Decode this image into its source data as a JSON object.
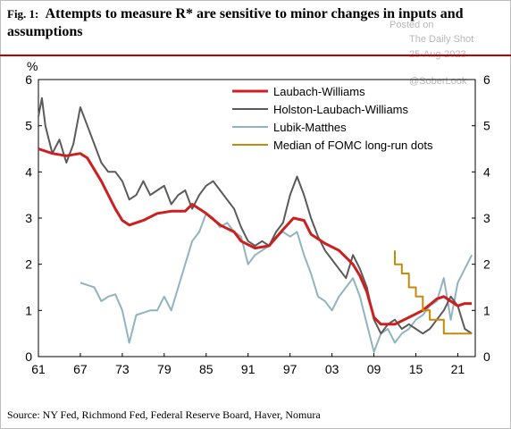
{
  "header": {
    "fig_label": "Fig. 1:",
    "title": "Attempts to measure R* are sensitive to minor changes in inputs and assumptions"
  },
  "watermark": {
    "posted": "Posted on",
    "site": "The Daily Shot",
    "date": "25-Aug-2023",
    "handle": "@SoberLook"
  },
  "footer": {
    "source": "Source: NY Fed, Richmond Fed, Federal Reserve Board, Haver, Nomura"
  },
  "chart_data": {
    "type": "line",
    "ylabel": "%",
    "xlim": [
      1961,
      2023.5
    ],
    "ylim": [
      0,
      6
    ],
    "x_ticks": [
      "61",
      "67",
      "73",
      "79",
      "85",
      "91",
      "97",
      "03",
      "09",
      "15",
      "21"
    ],
    "y_ticks": [
      "0",
      "1",
      "2",
      "3",
      "4",
      "5",
      "6"
    ],
    "legend_position": "top-right",
    "grid": false,
    "series": [
      {
        "name": "Laubach-Williams",
        "color": "#cc1f1f",
        "x": [
          1961,
          1963,
          1965,
          1967,
          1968,
          1970,
          1972,
          1973,
          1974,
          1976,
          1978,
          1980,
          1982,
          1983,
          1985,
          1987,
          1989,
          1990,
          1992,
          1994,
          1996,
          1997.5,
          1999,
          2000,
          2002,
          2004,
          2006,
          2007,
          2008,
          2009,
          2010,
          2012,
          2014,
          2016,
          2018,
          2019,
          2020,
          2021,
          2022,
          2023
        ],
        "y": [
          4.5,
          4.4,
          4.35,
          4.4,
          4.3,
          3.8,
          3.2,
          2.95,
          2.85,
          2.95,
          3.1,
          3.15,
          3.15,
          3.3,
          3.1,
          2.85,
          2.7,
          2.5,
          2.35,
          2.4,
          2.75,
          3.0,
          2.95,
          2.65,
          2.45,
          2.3,
          2.0,
          1.75,
          1.4,
          0.85,
          0.7,
          0.7,
          0.85,
          1.0,
          1.25,
          1.3,
          1.2,
          1.1,
          1.15,
          1.15
        ]
      },
      {
        "name": "Holston-Laubach-Williams",
        "color": "#5a5a5a",
        "x": [
          1961,
          1961.5,
          1962,
          1963,
          1964,
          1965,
          1966,
          1967,
          1968,
          1969,
          1970,
          1971,
          1972,
          1973,
          1974,
          1975,
          1976,
          1977,
          1978,
          1979,
          1980,
          1981,
          1982,
          1983,
          1984,
          1985,
          1986,
          1987,
          1988,
          1989,
          1990,
          1991,
          1992,
          1993,
          1994,
          1995,
          1996,
          1997,
          1998,
          1999,
          2000,
          2001,
          2002,
          2003,
          2004,
          2005,
          2006,
          2007,
          2008,
          2009,
          2010,
          2011,
          2012,
          2013,
          2014,
          2015,
          2016,
          2017,
          2018,
          2019,
          2020,
          2021,
          2022,
          2023
        ],
        "y": [
          5.2,
          5.6,
          5.0,
          4.4,
          4.7,
          4.2,
          4.6,
          5.4,
          5.0,
          4.6,
          4.2,
          4.0,
          4.0,
          3.8,
          3.4,
          3.5,
          3.8,
          3.5,
          3.6,
          3.7,
          3.3,
          3.5,
          3.6,
          3.2,
          3.5,
          3.7,
          3.8,
          3.6,
          3.4,
          3.2,
          2.8,
          2.5,
          2.4,
          2.5,
          2.4,
          2.7,
          2.9,
          3.5,
          3.9,
          3.5,
          3.0,
          2.6,
          2.3,
          2.1,
          1.9,
          1.7,
          2.2,
          1.9,
          1.5,
          0.8,
          0.5,
          0.7,
          0.8,
          0.6,
          0.7,
          0.6,
          0.5,
          0.6,
          0.8,
          1.0,
          1.3,
          1.1,
          0.6,
          0.5
        ]
      },
      {
        "name": "Lubik-Matthes",
        "color": "#8fb4bf",
        "x": [
          1967,
          1968,
          1969,
          1970,
          1971,
          1972,
          1973,
          1974,
          1975,
          1976,
          1977,
          1978,
          1979,
          1980,
          1981,
          1982,
          1983,
          1984,
          1985,
          1986,
          1987,
          1988,
          1989,
          1990,
          1991,
          1992,
          1993,
          1994,
          1995,
          1996,
          1997,
          1998,
          1999,
          2000,
          2001,
          2002,
          2003,
          2004,
          2005,
          2006,
          2007,
          2008,
          2009,
          2010,
          2011,
          2012,
          2013,
          2014,
          2015,
          2016,
          2017,
          2018,
          2019,
          2020,
          2021,
          2022,
          2023
        ],
        "y": [
          1.6,
          1.55,
          1.5,
          1.2,
          1.3,
          1.35,
          1.0,
          0.3,
          0.9,
          0.95,
          1.0,
          1.0,
          1.3,
          1.0,
          1.5,
          2.0,
          2.5,
          2.7,
          3.1,
          3.0,
          2.8,
          2.9,
          2.7,
          2.6,
          2.0,
          2.2,
          2.3,
          2.4,
          2.6,
          2.7,
          2.6,
          2.7,
          2.2,
          1.8,
          1.3,
          1.2,
          1.0,
          1.3,
          1.5,
          1.7,
          1.3,
          0.7,
          0.1,
          0.5,
          0.6,
          0.3,
          0.5,
          0.6,
          0.8,
          0.9,
          1.1,
          1.2,
          1.7,
          0.8,
          1.6,
          1.9,
          2.2
        ]
      },
      {
        "name": "Median of FOMC long-run dots",
        "color": "#c8890a",
        "x": [
          2012,
          2012,
          2013,
          2013,
          2014,
          2014,
          2015,
          2015,
          2016,
          2016,
          2017,
          2017,
          2018,
          2018,
          2019,
          2019,
          2020,
          2020,
          2021,
          2021,
          2022,
          2022,
          2023
        ],
        "y": [
          2.3,
          2.0,
          2.0,
          1.8,
          1.8,
          1.5,
          1.5,
          1.3,
          1.3,
          1.0,
          1.0,
          0.8,
          0.8,
          0.8,
          0.8,
          0.5,
          0.5,
          0.5,
          0.5,
          0.5,
          0.5,
          0.5,
          0.5
        ]
      }
    ]
  }
}
